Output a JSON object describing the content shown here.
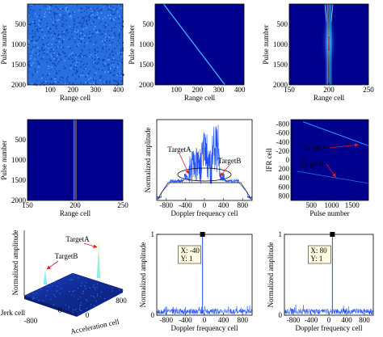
{
  "colors": {
    "background": "#ffffff",
    "map_low": "#00008f",
    "map_high": "#ff2000",
    "noise_mid": "#1f6fe0",
    "line_color": "#1f4fff",
    "annotation_red": "#e41a1c",
    "marker_black": "#000000"
  },
  "chart_data": [
    {
      "id": "p1",
      "type": "heatmap",
      "description_type": "noise",
      "xlabel": "Range cell",
      "ylabel": "Pulse number",
      "xticks": [
        "100",
        "200",
        "300",
        "400"
      ],
      "yticks": [
        "500",
        "1000",
        "1500",
        "2000"
      ],
      "xlim": [
        0,
        420
      ],
      "ylim": [
        0,
        2000
      ]
    },
    {
      "id": "p2",
      "type": "heatmap",
      "description_type": "diagonal_line",
      "xlabel": "Range cell",
      "ylabel": "Pulse number",
      "xticks": [
        "100",
        "200",
        "300",
        "400"
      ],
      "yticks": [
        "500",
        "1000",
        "1500",
        "2000"
      ],
      "xlim": [
        0,
        420
      ],
      "ylim": [
        0,
        2000
      ],
      "line": {
        "x": [
          40,
          330
        ],
        "y": [
          0,
          2000
        ]
      }
    },
    {
      "id": "p3",
      "type": "heatmap",
      "description_type": "vertical_focus",
      "xlabel": "Range cell",
      "ylabel": "Pulse number",
      "xticks": [
        "150",
        "200",
        "250"
      ],
      "yticks": [
        "500",
        "1000",
        "1500",
        "2000"
      ],
      "xlim": [
        150,
        250
      ],
      "ylim": [
        0,
        2000
      ],
      "focus_x": 200
    },
    {
      "id": "p4",
      "type": "heatmap",
      "description_type": "vertical_line",
      "xlabel": "Range cell",
      "ylabel": "Pulse number",
      "xticks": [
        "150",
        "200",
        "250"
      ],
      "yticks": [
        "500",
        "1000",
        "1500",
        "2000"
      ],
      "xlim": [
        150,
        250
      ],
      "ylim": [
        0,
        2000
      ],
      "focus_x": 200
    },
    {
      "id": "p5",
      "type": "line",
      "xlabel": "Doppler frequency cell",
      "ylabel": "Normalized amplitude",
      "xticks": [
        "-800",
        "-400",
        "0",
        "400",
        "800"
      ],
      "xlim": [
        -1000,
        1000
      ],
      "ylim": [
        0,
        1
      ],
      "annotations": [
        {
          "text": "TargetA",
          "arrow_to": [
            -330,
            0.33
          ]
        },
        {
          "text": "TargetB",
          "arrow_to": [
            330,
            0.3
          ]
        }
      ],
      "ellipse": {
        "cx": 0,
        "cy": 0.32,
        "rx": 560,
        "ry": 0.08
      }
    },
    {
      "id": "p6",
      "type": "heatmap",
      "description_type": "two_oblique_lines",
      "xlabel": "Pulse number",
      "ylabel": "IFR cell",
      "xticks": [
        "500",
        "1000",
        "1500"
      ],
      "yticks": [
        "-800",
        "-600",
        "-400",
        "-200",
        "0",
        "200",
        "400",
        "600",
        "800"
      ],
      "xlim": [
        0,
        1900
      ],
      "ylim": [
        -900,
        900
      ],
      "annotations": [
        {
          "text": "TargetA",
          "arrow_to": [
            1650,
            -340
          ]
        },
        {
          "text": "TargetB",
          "arrow_to": [
            1100,
            380
          ]
        }
      ]
    },
    {
      "id": "p7",
      "type": "surface",
      "xlabel": "Acceleration cell",
      "ylabel": "Jerk cell",
      "zlabel": "Normalized amplitude",
      "xticks": [
        "0",
        "800"
      ],
      "yticks": [
        "0",
        "-800"
      ],
      "annotations": [
        {
          "text": "TargetA"
        },
        {
          "text": "TargetB"
        }
      ]
    },
    {
      "id": "p8",
      "type": "line",
      "xlabel": "Doppler frequency cell",
      "ylabel": "Normalized amplitude",
      "xticks": [
        "-800",
        "-400",
        "0",
        "400",
        "800"
      ],
      "yticks": [
        "0",
        "1"
      ],
      "xlim": [
        -1000,
        1000
      ],
      "ylim": [
        0,
        1
      ],
      "peak": {
        "x": -40,
        "y": 1
      },
      "datatip": {
        "x_label": "X: -40",
        "y_label": "Y: 1"
      }
    },
    {
      "id": "p9",
      "type": "line",
      "xlabel": "Doppler frequency cell",
      "ylabel": "Normalized amplitude",
      "xticks": [
        "-800",
        "-400",
        "0",
        "400",
        "800"
      ],
      "yticks": [
        "0",
        "1"
      ],
      "xlim": [
        -1000,
        1000
      ],
      "ylim": [
        0,
        1
      ],
      "peak": {
        "x": 80,
        "y": 1
      },
      "datatip": {
        "x_label": "X: 80",
        "y_label": "Y: 1"
      }
    }
  ]
}
